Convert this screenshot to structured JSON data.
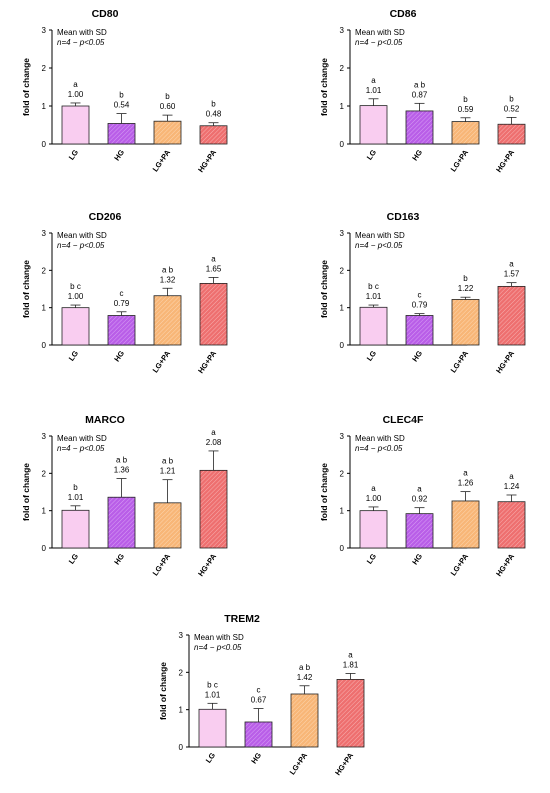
{
  "figure": {
    "ylabel": "fold of change",
    "note_line1": "Mean with SD",
    "note_line2": "n=4 − p<0.05",
    "categories": [
      "LG",
      "HG",
      "LG+PA",
      "HG+PA"
    ],
    "colors": {
      "LG": "#f9cdf0",
      "HG": "#b95ee8",
      "LG+PA": "#f8b677",
      "HG+PA": "#ee6f6f"
    },
    "yticks": [
      0,
      1,
      2,
      3
    ],
    "ylim": [
      0,
      3
    ]
  },
  "chart_data": [
    {
      "type": "bar",
      "title": "CD80",
      "categories": [
        "LG",
        "HG",
        "LG+PA",
        "HG+PA"
      ],
      "values": [
        1.0,
        0.54,
        0.6,
        0.48
      ],
      "value_labels": [
        "1.00",
        "0.54",
        "0.60",
        "0.48"
      ],
      "sd": [
        0.08,
        0.26,
        0.16,
        0.08
      ],
      "groups": [
        "a",
        "b",
        "b",
        "b"
      ],
      "ylabel": "fold of change",
      "ylim": [
        0,
        3
      ]
    },
    {
      "type": "bar",
      "title": "CD86",
      "categories": [
        "LG",
        "HG",
        "LG+PA",
        "HG+PA"
      ],
      "values": [
        1.01,
        0.87,
        0.59,
        0.52
      ],
      "value_labels": [
        "1.01",
        "0.87",
        "0.59",
        "0.52"
      ],
      "sd": [
        0.18,
        0.2,
        0.1,
        0.18
      ],
      "groups": [
        "a",
        "a b",
        "b",
        "b"
      ],
      "ylabel": "fold of change",
      "ylim": [
        0,
        3
      ]
    },
    {
      "type": "bar",
      "title": "CD206",
      "categories": [
        "LG",
        "HG",
        "LG+PA",
        "HG+PA"
      ],
      "values": [
        1.0,
        0.79,
        1.32,
        1.65
      ],
      "value_labels": [
        "1.00",
        "0.79",
        "1.32",
        "1.65"
      ],
      "sd": [
        0.07,
        0.1,
        0.2,
        0.16
      ],
      "groups": [
        "b c",
        "c",
        "a b",
        "a"
      ],
      "ylabel": "fold of change",
      "ylim": [
        0,
        3
      ]
    },
    {
      "type": "bar",
      "title": "CD163",
      "categories": [
        "LG",
        "HG",
        "LG+PA",
        "HG+PA"
      ],
      "values": [
        1.01,
        0.79,
        1.22,
        1.57
      ],
      "value_labels": [
        "1.01",
        "0.79",
        "1.22",
        "1.57"
      ],
      "sd": [
        0.06,
        0.05,
        0.06,
        0.1
      ],
      "groups": [
        "b c",
        "c",
        "b",
        "a"
      ],
      "ylabel": "fold of change",
      "ylim": [
        0,
        3
      ]
    },
    {
      "type": "bar",
      "title": "MARCO",
      "categories": [
        "LG",
        "HG",
        "LG+PA",
        "HG+PA"
      ],
      "values": [
        1.01,
        1.36,
        1.21,
        2.08
      ],
      "value_labels": [
        "1.01",
        "1.36",
        "1.21",
        "2.08"
      ],
      "sd": [
        0.12,
        0.5,
        0.62,
        0.52
      ],
      "groups": [
        "b",
        "a b",
        "a b",
        "a"
      ],
      "ylabel": "fold of change",
      "ylim": [
        0,
        3
      ]
    },
    {
      "type": "bar",
      "title": "CLEC4F",
      "categories": [
        "LG",
        "HG",
        "LG+PA",
        "HG+PA"
      ],
      "values": [
        1.0,
        0.92,
        1.26,
        1.24
      ],
      "value_labels": [
        "1.00",
        "0.92",
        "1.26",
        "1.24"
      ],
      "sd": [
        0.1,
        0.16,
        0.25,
        0.18
      ],
      "groups": [
        "a",
        "a",
        "a",
        "a"
      ],
      "ylabel": "fold of change",
      "ylim": [
        0,
        3
      ]
    },
    {
      "type": "bar",
      "title": "TREM2",
      "categories": [
        "LG",
        "HG",
        "LG+PA",
        "HG+PA"
      ],
      "values": [
        1.01,
        0.67,
        1.42,
        1.81
      ],
      "value_labels": [
        "1.01",
        "0.67",
        "1.42",
        "1.81"
      ],
      "sd": [
        0.16,
        0.36,
        0.22,
        0.16
      ],
      "groups": [
        "b c",
        "c",
        "a b",
        "a"
      ],
      "ylabel": "fold of change",
      "ylim": [
        0,
        3
      ]
    }
  ]
}
